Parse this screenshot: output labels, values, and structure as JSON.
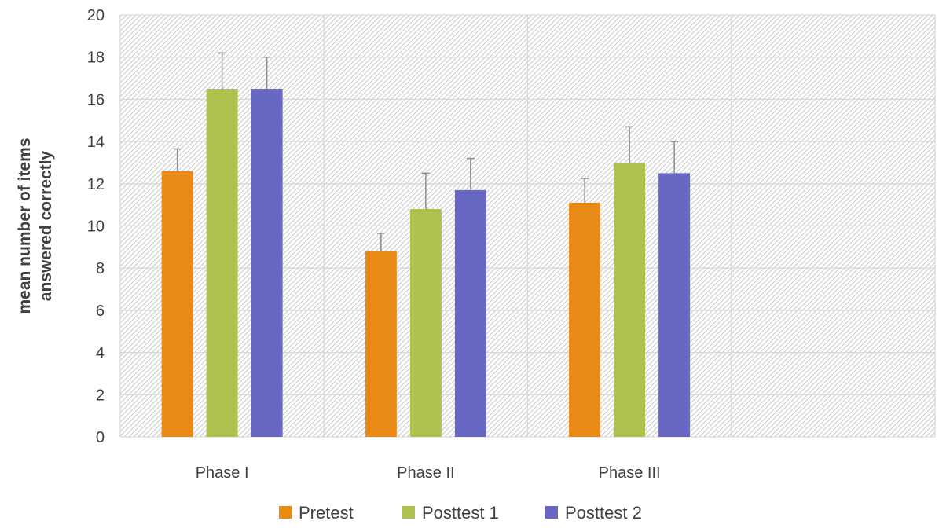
{
  "chart_data": {
    "type": "bar",
    "title": "",
    "xlabel": "",
    "ylabel_lines": [
      "mean number of items",
      "answered correctly"
    ],
    "ylim": [
      0,
      20
    ],
    "yticks": [
      0,
      2,
      4,
      6,
      8,
      10,
      12,
      14,
      16,
      18,
      20
    ],
    "grid": true,
    "legend_position": "bottom",
    "categories": [
      "Phase I",
      "Phase II",
      "Phase III",
      ""
    ],
    "series": [
      {
        "name": "Pretest",
        "color": "#e98a17",
        "values": [
          12.6,
          8.8,
          11.1,
          null
        ],
        "error_upper": [
          1.05,
          0.85,
          1.15,
          null
        ]
      },
      {
        "name": "Posttest 1",
        "color": "#afc24e",
        "values": [
          16.5,
          10.8,
          13.0,
          null
        ],
        "error_upper": [
          1.7,
          1.7,
          1.7,
          null
        ]
      },
      {
        "name": "Posttest 2",
        "color": "#6868c4",
        "values": [
          16.5,
          11.7,
          12.5,
          null
        ],
        "error_upper": [
          1.5,
          1.5,
          1.5,
          null
        ]
      }
    ]
  }
}
